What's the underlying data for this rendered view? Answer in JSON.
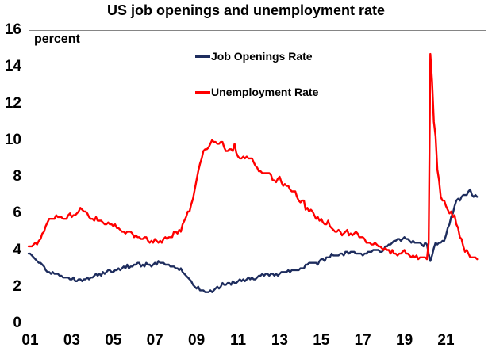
{
  "title": "US job openings and unemployment rate",
  "axis_unit_label": "percent",
  "legend": {
    "job_openings": "Job Openings Rate",
    "unemployment": "Unemployment Rate"
  },
  "colors": {
    "job_openings": "#1e2d5e",
    "unemployment": "#ff0000",
    "plot_border": "#858585",
    "text": "#000000",
    "background": "#ffffff"
  },
  "chart_data": {
    "type": "line",
    "title": "US job openings and unemployment rate",
    "xlabel": "",
    "ylabel": "percent",
    "ylim": [
      0,
      16
    ],
    "y_ticks": [
      0,
      2,
      4,
      6,
      8,
      10,
      12,
      14,
      16
    ],
    "x_ticks": [
      {
        "label": "01",
        "year": 2001
      },
      {
        "label": "03",
        "year": 2003
      },
      {
        "label": "05",
        "year": 2005
      },
      {
        "label": "07",
        "year": 2007
      },
      {
        "label": "09",
        "year": 2009
      },
      {
        "label": "11",
        "year": 2011
      },
      {
        "label": "13",
        "year": 2013
      },
      {
        "label": "15",
        "year": 2015
      },
      {
        "label": "17",
        "year": 2017
      },
      {
        "label": "19",
        "year": 2019
      },
      {
        "label": "21",
        "year": 2021
      }
    ],
    "x_start_year": 2001,
    "points_per_year": 12,
    "grid": false,
    "legend_position": "top-center-inside",
    "series": [
      {
        "name": "Job Openings Rate",
        "data_name": "job-openings-line",
        "color": "#1e2d5e",
        "values": [
          3.8,
          3.7,
          3.6,
          3.5,
          3.4,
          3.3,
          3.3,
          3.2,
          3.1,
          2.9,
          2.8,
          2.8,
          2.7,
          2.8,
          2.7,
          2.7,
          2.7,
          2.6,
          2.6,
          2.5,
          2.5,
          2.5,
          2.5,
          2.4,
          2.4,
          2.5,
          2.3,
          2.3,
          2.4,
          2.4,
          2.3,
          2.4,
          2.4,
          2.5,
          2.4,
          2.5,
          2.5,
          2.6,
          2.7,
          2.6,
          2.7,
          2.6,
          2.8,
          2.7,
          2.8,
          2.9,
          2.9,
          2.8,
          2.8,
          2.9,
          2.9,
          3.0,
          2.9,
          3.0,
          3.1,
          3.0,
          3.2,
          3.0,
          3.1,
          3.1,
          3.2,
          3.2,
          3.3,
          3.3,
          3.1,
          3.2,
          3.1,
          3.3,
          3.2,
          3.2,
          3.1,
          3.2,
          3.3,
          3.2,
          3.4,
          3.3,
          3.3,
          3.3,
          3.2,
          3.2,
          3.2,
          3.1,
          3.1,
          3.1,
          3.0,
          3.0,
          2.9,
          3.0,
          2.8,
          2.7,
          2.6,
          2.5,
          2.4,
          2.3,
          2.1,
          2.0,
          1.9,
          2.0,
          1.8,
          1.8,
          1.8,
          1.7,
          1.7,
          1.7,
          1.8,
          1.7,
          1.8,
          1.9,
          2.0,
          1.9,
          2.0,
          2.2,
          2.1,
          2.1,
          2.2,
          2.2,
          2.1,
          2.3,
          2.2,
          2.2,
          2.3,
          2.4,
          2.3,
          2.4,
          2.3,
          2.4,
          2.5,
          2.4,
          2.5,
          2.4,
          2.4,
          2.5,
          2.6,
          2.6,
          2.7,
          2.6,
          2.7,
          2.7,
          2.6,
          2.7,
          2.7,
          2.6,
          2.7,
          2.6,
          2.7,
          2.8,
          2.8,
          2.8,
          2.8,
          2.9,
          2.8,
          2.9,
          2.9,
          2.9,
          2.9,
          2.9,
          3.0,
          3.0,
          3.0,
          3.2,
          3.2,
          3.3,
          3.3,
          3.3,
          3.3,
          3.3,
          3.2,
          3.4,
          3.5,
          3.5,
          3.4,
          3.6,
          3.6,
          3.6,
          3.8,
          3.7,
          3.7,
          3.7,
          3.7,
          3.8,
          3.8,
          3.7,
          3.9,
          3.9,
          3.8,
          3.9,
          3.9,
          3.9,
          3.8,
          3.8,
          3.8,
          3.8,
          3.7,
          3.8,
          3.8,
          3.9,
          3.9,
          3.9,
          4.0,
          4.0,
          4.0,
          4.0,
          3.9,
          3.9,
          4.0,
          4.2,
          4.2,
          4.3,
          4.3,
          4.4,
          4.5,
          4.5,
          4.6,
          4.6,
          4.5,
          4.6,
          4.7,
          4.6,
          4.6,
          4.5,
          4.4,
          4.5,
          4.4,
          4.4,
          4.4,
          4.4,
          4.3,
          4.2,
          4.4,
          4.3,
          3.8,
          3.4,
          3.7,
          4.1,
          4.4,
          4.3,
          4.4,
          4.4,
          4.5,
          4.5,
          4.8,
          5.2,
          5.4,
          5.8,
          6.0,
          6.4,
          6.7,
          6.8,
          6.7,
          6.9,
          7.0,
          7.0,
          7.0,
          7.2,
          7.3,
          7.0,
          6.9,
          7.0,
          6.9
        ]
      },
      {
        "name": "Unemployment Rate",
        "data_name": "unemployment-line",
        "color": "#ff0000",
        "values": [
          4.2,
          4.2,
          4.3,
          4.4,
          4.3,
          4.5,
          4.6,
          4.9,
          5.0,
          5.3,
          5.5,
          5.7,
          5.7,
          5.7,
          5.7,
          5.9,
          5.8,
          5.8,
          5.8,
          5.7,
          5.7,
          5.7,
          5.9,
          6.0,
          5.8,
          5.9,
          5.9,
          6.0,
          6.1,
          6.3,
          6.2,
          6.1,
          6.1,
          6.0,
          5.8,
          5.7,
          5.7,
          5.6,
          5.8,
          5.6,
          5.6,
          5.6,
          5.5,
          5.4,
          5.4,
          5.5,
          5.4,
          5.4,
          5.3,
          5.4,
          5.2,
          5.2,
          5.1,
          5.0,
          5.0,
          4.9,
          5.0,
          5.0,
          5.0,
          4.9,
          4.7,
          4.8,
          4.7,
          4.7,
          4.6,
          4.6,
          4.7,
          4.7,
          4.5,
          4.4,
          4.5,
          4.4,
          4.6,
          4.5,
          4.4,
          4.5,
          4.4,
          4.6,
          4.7,
          4.6,
          4.7,
          4.7,
          4.7,
          5.0,
          5.0,
          4.9,
          5.1,
          5.0,
          5.4,
          5.6,
          5.8,
          6.1,
          6.1,
          6.5,
          6.8,
          7.3,
          7.8,
          8.3,
          8.7,
          9.0,
          9.4,
          9.5,
          9.5,
          9.6,
          9.8,
          10.0,
          9.9,
          9.9,
          9.8,
          9.8,
          9.9,
          9.9,
          9.6,
          9.4,
          9.4,
          9.5,
          9.5,
          9.4,
          9.8,
          9.3,
          9.1,
          9.0,
          9.0,
          9.1,
          9.0,
          9.1,
          9.0,
          9.0,
          9.0,
          8.8,
          8.6,
          8.5,
          8.3,
          8.3,
          8.2,
          8.2,
          8.2,
          8.2,
          8.2,
          8.1,
          7.8,
          7.8,
          7.7,
          7.9,
          8.0,
          7.7,
          7.5,
          7.6,
          7.5,
          7.5,
          7.3,
          7.2,
          7.2,
          7.2,
          6.9,
          6.7,
          6.6,
          6.7,
          6.7,
          6.2,
          6.3,
          6.1,
          6.2,
          6.1,
          5.9,
          5.7,
          5.8,
          5.6,
          5.7,
          5.5,
          5.4,
          5.4,
          5.6,
          5.3,
          5.2,
          5.1,
          5.0,
          5.0,
          5.1,
          5.0,
          4.8,
          4.9,
          5.0,
          5.1,
          4.8,
          4.9,
          4.8,
          4.9,
          5.0,
          4.9,
          4.7,
          4.7,
          4.7,
          4.6,
          4.4,
          4.4,
          4.4,
          4.3,
          4.3,
          4.4,
          4.3,
          4.2,
          4.2,
          4.1,
          4.0,
          4.1,
          4.0,
          4.0,
          3.8,
          4.0,
          3.8,
          3.8,
          3.7,
          3.8,
          3.8,
          3.9,
          4.0,
          3.8,
          3.8,
          3.7,
          3.6,
          3.7,
          3.6,
          3.7,
          3.5,
          3.6,
          3.6,
          3.6,
          3.6,
          3.5,
          4.4,
          14.7,
          13.2,
          11.0,
          10.2,
          8.4,
          7.8,
          6.9,
          6.7,
          6.7,
          6.4,
          6.2,
          6.0,
          6.1,
          5.8,
          5.9,
          5.4,
          5.2,
          4.7,
          4.6,
          4.2,
          3.9,
          4.0,
          3.8,
          3.6,
          3.6,
          3.6,
          3.6,
          3.5
        ]
      }
    ]
  }
}
